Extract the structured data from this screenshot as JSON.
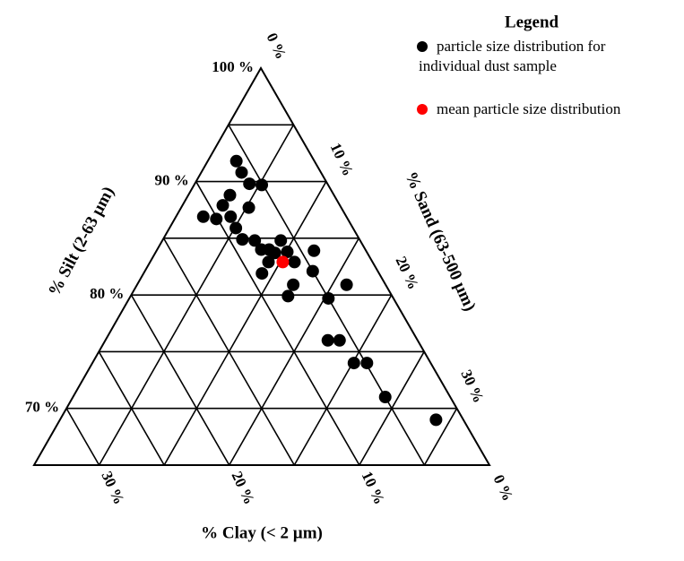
{
  "chart_data": {
    "type": "ternary",
    "legend_title": "Legend",
    "silt_label": "% Silt (2-63 µm)",
    "sand_label": "% Sand (63-500 µm)",
    "clay_label": "% Clay (< 2 µm)",
    "silt_lim": [
      65,
      100
    ],
    "sand_lim": [
      0,
      35
    ],
    "clay_lim": [
      0,
      35
    ],
    "grid_step": 5,
    "silt_ticks": [
      {
        "value": 100,
        "label": "100 %"
      },
      {
        "value": 90,
        "label": "90 %"
      },
      {
        "value": 80,
        "label": "80 %"
      },
      {
        "value": 70,
        "label": "70 %"
      }
    ],
    "sand_ticks": [
      {
        "value": 0,
        "label": "0 %"
      },
      {
        "value": 10,
        "label": "10 %"
      },
      {
        "value": 20,
        "label": "20 %"
      },
      {
        "value": 30,
        "label": "30 %"
      }
    ],
    "clay_ticks": [
      {
        "value": 0,
        "label": "0 %"
      },
      {
        "value": 10,
        "label": "10 %"
      },
      {
        "value": 20,
        "label": "20 %"
      },
      {
        "value": 30,
        "label": "30 %"
      }
    ],
    "series": [
      {
        "name": "particle size distribution for individual dust sample",
        "color": "#000000",
        "silt": [
          91.8,
          90.8,
          89.8,
          89.7,
          88.8,
          87.9,
          87.7,
          86.9,
          86.7,
          86.9,
          85.9,
          84.9,
          84.8,
          84.0,
          84.0,
          84.8,
          83.7,
          83.8,
          83.9,
          82.9,
          82.9,
          81.9,
          82.1,
          80.9,
          79.9,
          80.9,
          79.7,
          76.0,
          76.0,
          74.0,
          74.0,
          71.0,
          69.0
        ],
        "sand": [
          2.2,
          3.1,
          4.2,
          5.2,
          3.2,
          3.1,
          5.2,
          2.1,
          3.2,
          4.2,
          5.1,
          6.1,
          7.1,
          8.0,
          8.6,
          9.1,
          9.2,
          10.1,
          12.1,
          11.1,
          9.1,
          9.1,
          12.9,
          12.0,
          12.1,
          16.1,
          15.3,
          17.1,
          18.0,
          20.1,
          21.1,
          24.0,
          28.9
        ]
      },
      {
        "name": "mean particle size distribution",
        "color": "#ff0000",
        "silt": [
          82.9
        ],
        "sand": [
          10.2
        ]
      }
    ]
  }
}
